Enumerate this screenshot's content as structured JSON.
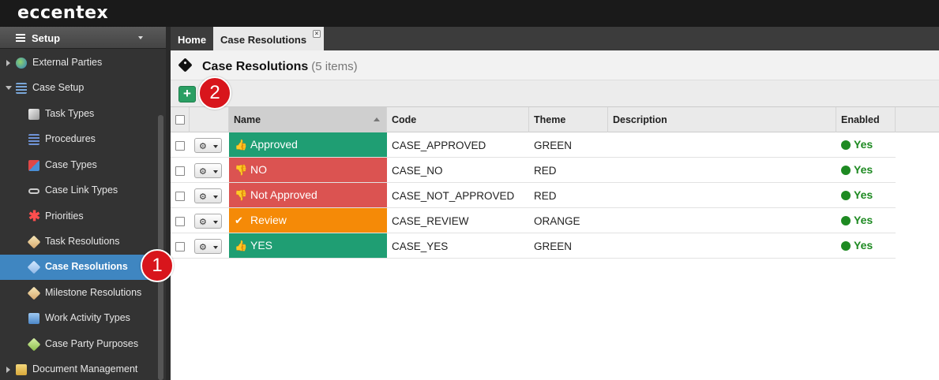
{
  "app": {
    "logo": "eccentex"
  },
  "sidebar": {
    "header": "Setup",
    "items": [
      {
        "label": "External Parties",
        "icon": "globe-icon"
      },
      {
        "label": "Case Setup",
        "icon": "tree-icon"
      },
      {
        "label": "Task Types",
        "icon": "box-icon"
      },
      {
        "label": "Procedures",
        "icon": "list-icon"
      },
      {
        "label": "Case Types",
        "icon": "cubes-icon"
      },
      {
        "label": "Case Link Types",
        "icon": "link-icon"
      },
      {
        "label": "Priorities",
        "icon": "asterisk-icon"
      },
      {
        "label": "Task Resolutions",
        "icon": "tag-icon"
      },
      {
        "label": "Case Resolutions",
        "icon": "tag-icon"
      },
      {
        "label": "Milestone Resolutions",
        "icon": "tag-icon"
      },
      {
        "label": "Work Activity Types",
        "icon": "phone-icon"
      },
      {
        "label": "Case Party Purposes",
        "icon": "tag-icon"
      },
      {
        "label": "Document Management",
        "icon": "folder-icon"
      }
    ]
  },
  "tabs": [
    {
      "label": "Home"
    },
    {
      "label": "Case Resolutions",
      "close": "×"
    }
  ],
  "page": {
    "title": "Case Resolutions",
    "count": "(5 items)"
  },
  "toolbar": {
    "add_label": "+"
  },
  "callouts": {
    "one": "1",
    "two": "2"
  },
  "table": {
    "columns": [
      "Name",
      "Code",
      "Theme",
      "Description",
      "Enabled"
    ],
    "rows": [
      {
        "name": "Approved",
        "icon": "thumbs-up-icon",
        "code": "CASE_APPROVED",
        "theme": "GREEN",
        "description": "",
        "enabled": "Yes",
        "color": "#1f9e73"
      },
      {
        "name": "NO",
        "icon": "thumbs-down-icon",
        "code": "CASE_NO",
        "theme": "RED",
        "description": "",
        "enabled": "Yes",
        "color": "#db5351"
      },
      {
        "name": "Not Approved",
        "icon": "thumbs-down-icon",
        "code": "CASE_NOT_APPROVED",
        "theme": "RED",
        "description": "",
        "enabled": "Yes",
        "color": "#db5351"
      },
      {
        "name": "Review",
        "icon": "check-icon",
        "code": "CASE_REVIEW",
        "theme": "ORANGE",
        "description": "",
        "enabled": "Yes",
        "color": "#f58a07"
      },
      {
        "name": "YES",
        "icon": "thumbs-up-icon",
        "code": "CASE_YES",
        "theme": "GREEN",
        "description": "",
        "enabled": "Yes",
        "color": "#1f9e73"
      }
    ]
  }
}
